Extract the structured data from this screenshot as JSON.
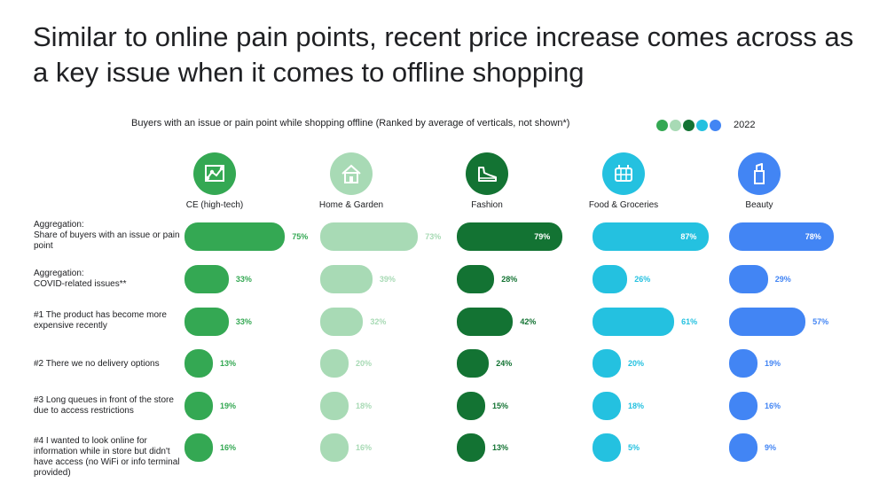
{
  "title": "Similar to online pain points, recent price increase comes across as a key issue when it comes to offline shopping",
  "subtitle": "Buyers with an issue or pain point while shopping offline (Ranked by average of verticals, not shown*)",
  "legend": {
    "year": "2022",
    "colors": [
      "#34a853",
      "#a8dab5",
      "#137333",
      "#24c1e0",
      "#4285f4"
    ]
  },
  "chart_data": {
    "type": "bar",
    "title": "Similar to online pain points, recent price increase comes across as a key issue when it comes to offline shopping",
    "subtitle": "Buyers with an issue or pain point while shopping offline (Ranked by average of verticals, not shown*)",
    "unit": "%",
    "categories": [
      "Aggregation:\nShare of buyers with an issue or pain point",
      "Aggregation:\nCOVID-related issues**",
      "#1 The product has become more expensive recently",
      "#2 There we no delivery options",
      "#3 Long queues in front of the store due to access restrictions",
      "#4 I wanted to look online for information while in store but didn't have access (no WiFi or info terminal provided)"
    ],
    "series": [
      {
        "name": "CE (high-tech)",
        "color": "#34a853",
        "icon": "camera-network-icon",
        "label_inside_top": false,
        "values": [
          75,
          33,
          33,
          13,
          19,
          16
        ]
      },
      {
        "name": "Home & Garden",
        "color": "#a8dab5",
        "icon": "house-icon",
        "label_inside_top": false,
        "values": [
          73,
          39,
          32,
          20,
          18,
          16
        ]
      },
      {
        "name": "Fashion",
        "color": "#137333",
        "icon": "sneaker-icon",
        "label_inside_top": true,
        "values": [
          79,
          28,
          42,
          24,
          15,
          13
        ]
      },
      {
        "name": "Food & Groceries",
        "color": "#24c1e0",
        "icon": "grocery-basket-icon",
        "label_inside_top": true,
        "values": [
          87,
          26,
          61,
          20,
          18,
          5
        ]
      },
      {
        "name": "Beauty",
        "color": "#4285f4",
        "icon": "lipstick-icon",
        "label_inside_top": true,
        "values": [
          78,
          29,
          57,
          19,
          16,
          9
        ]
      }
    ],
    "legend": [
      "2022"
    ]
  }
}
